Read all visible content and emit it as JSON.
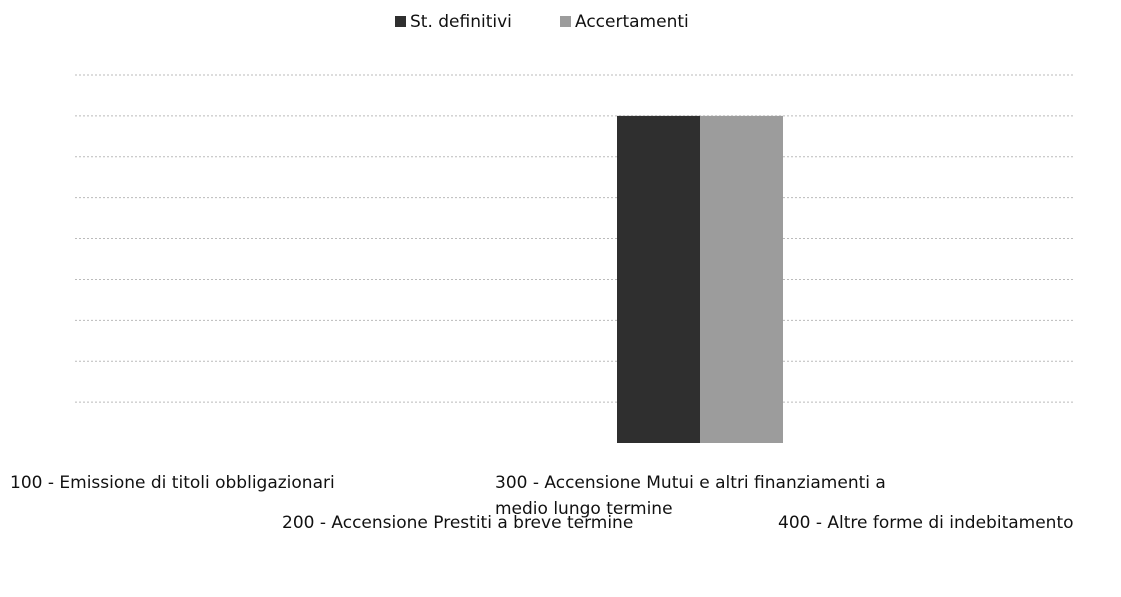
{
  "chart_data": {
    "type": "bar",
    "categories": [
      "100 - Emissione di titoli obbligazionari",
      "200 - Accensione Prestiti a breve termine",
      "300 - Accensione Mutui e altri finanziamenti a medio lungo termine",
      "400 - Altre forme di indebitamento"
    ],
    "series": [
      {
        "name": "St. definitivi",
        "color": "#2f2f2f",
        "values": [
          0,
          0,
          8,
          0
        ]
      },
      {
        "name": "Accertamenti",
        "color": "#9c9c9c",
        "values": [
          0,
          0,
          8,
          0
        ]
      }
    ],
    "ylim": [
      0,
      9
    ],
    "yticks": [
      1,
      2,
      3,
      4,
      5,
      6,
      7,
      8,
      9
    ],
    "grid": true,
    "legend": "top"
  }
}
